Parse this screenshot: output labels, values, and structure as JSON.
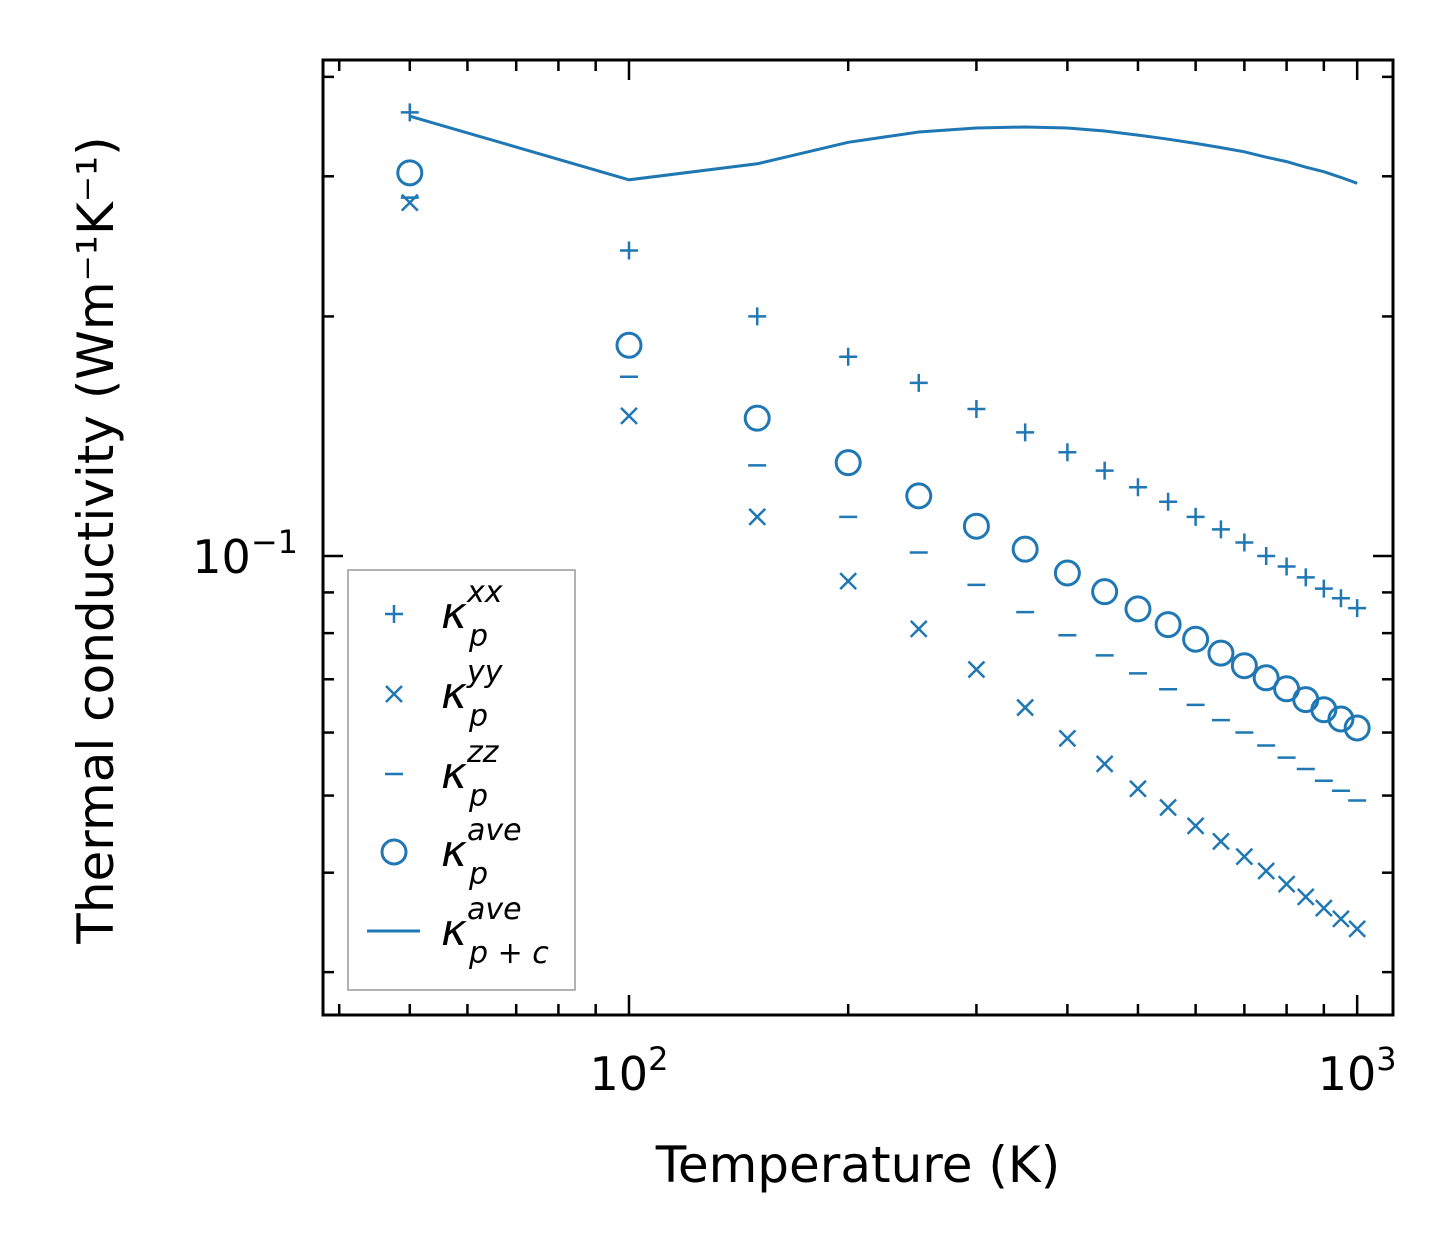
{
  "chart_data": {
    "type": "scatter",
    "xscale": "log",
    "yscale": "log",
    "xlabel": "Temperature (K)",
    "ylabel": "Thermal conductivity (Wm⁻¹K⁻¹)",
    "xlim": [
      38,
      1120
    ],
    "ylim": [
      0.0265,
      0.42
    ],
    "x_ticks": [
      {
        "value": 100,
        "base": "10",
        "exp": "2"
      },
      {
        "value": 1000,
        "base": "10",
        "exp": "3"
      }
    ],
    "y_ticks": [
      {
        "value": 0.1,
        "base": "10",
        "exp": "−1"
      }
    ],
    "legend": {
      "position": "lower-left"
    },
    "x": [
      50,
      100,
      150,
      200,
      250,
      300,
      350,
      400,
      450,
      500,
      550,
      600,
      650,
      700,
      750,
      800,
      850,
      900,
      950,
      1000
    ],
    "series": [
      {
        "name": "κ_p^xx",
        "base": "κ",
        "sub": "p",
        "sup": "xx",
        "marker": "plus",
        "values": [
          0.361,
          0.242,
          0.2,
          0.178,
          0.165,
          0.153,
          0.143,
          0.135,
          0.128,
          0.122,
          0.117,
          0.112,
          0.108,
          0.104,
          0.1,
          0.097,
          0.094,
          0.091,
          0.0885,
          0.086
        ]
      },
      {
        "name": "κ_p^yy",
        "base": "κ",
        "sub": "p",
        "sup": "yy",
        "marker": "x",
        "values": [
          0.278,
          0.15,
          0.112,
          0.093,
          0.081,
          0.072,
          0.0645,
          0.059,
          0.0548,
          0.051,
          0.0483,
          0.0458,
          0.0438,
          0.0419,
          0.0402,
          0.0387,
          0.0373,
          0.0361,
          0.035,
          0.034
        ]
      },
      {
        "name": "κ_p^zz",
        "base": "κ",
        "sub": "p",
        "sup": "zz",
        "marker": "hline",
        "values": [
          0.282,
          0.168,
          0.13,
          0.112,
          0.101,
          0.092,
          0.085,
          0.0795,
          0.075,
          0.0712,
          0.068,
          0.065,
          0.0622,
          0.06,
          0.0578,
          0.0558,
          0.054,
          0.0522,
          0.0507,
          0.0493
        ]
      },
      {
        "name": "κ_p^ave",
        "base": "κ",
        "sub": "p",
        "sup": "ave",
        "marker": "circle",
        "values": [
          0.303,
          0.184,
          0.149,
          0.131,
          0.119,
          0.109,
          0.102,
          0.0952,
          0.0902,
          0.0858,
          0.082,
          0.0786,
          0.0755,
          0.0728,
          0.0703,
          0.0681,
          0.066,
          0.0641,
          0.0624,
          0.0608
        ]
      },
      {
        "name": "κ_p+c^ave",
        "base": "κ",
        "sub": "p + c",
        "sup": "ave",
        "marker": "line",
        "values": [
          0.357,
          0.297,
          0.311,
          0.331,
          0.341,
          0.345,
          0.346,
          0.345,
          0.342,
          0.338,
          0.334,
          0.33,
          0.326,
          0.322,
          0.317,
          0.313,
          0.308,
          0.304,
          0.299,
          0.294
        ]
      }
    ],
    "colors": {
      "series": "#1f77b4",
      "axis": "#000000",
      "legend_border": "#999999"
    }
  }
}
